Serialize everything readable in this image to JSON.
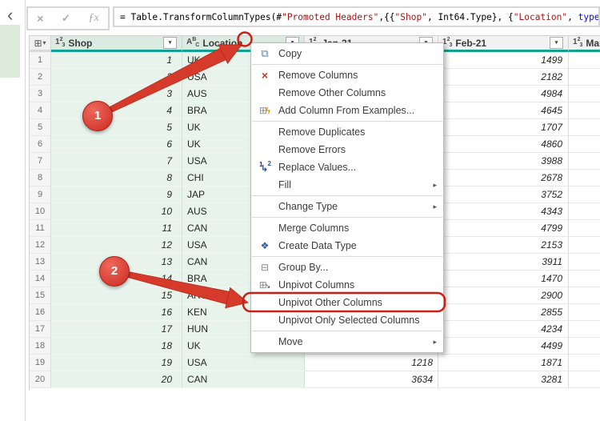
{
  "colors": {
    "accent_teal": "#10a193",
    "selection_green": "#e8f3ec",
    "annotation_red": "#cf1d12",
    "string_red": "#a31515",
    "keyword_blue": "#0000ff"
  },
  "nav": {
    "collapse_chevron": "‹"
  },
  "formula_bar": {
    "cancel_glyph": "×",
    "check_glyph": "✓",
    "fx_glyph": "ƒx",
    "segments": [
      {
        "text": "= Table.TransformColumnTypes(#",
        "color": "#000000"
      },
      {
        "text": "\"Promoted Headers\"",
        "color": "#a31515"
      },
      {
        "text": ",{{",
        "color": "#000000"
      },
      {
        "text": "\"Shop\"",
        "color": "#a31515"
      },
      {
        "text": ", Int64.Type}, {",
        "color": "#000000"
      },
      {
        "text": "\"Location\"",
        "color": "#a31515"
      },
      {
        "text": ", ",
        "color": "#000000"
      },
      {
        "text": "type",
        "color": "#0000ff"
      }
    ]
  },
  "table": {
    "columns": [
      {
        "key": "shop",
        "label": "Shop",
        "type_icon": "number",
        "selected": true
      },
      {
        "key": "location",
        "label": "Location",
        "type_icon": "text",
        "selected": true
      },
      {
        "key": "jan",
        "label": "Jan-21",
        "type_icon": "number",
        "selected": false
      },
      {
        "key": "feb",
        "label": "Feb-21",
        "type_icon": "number",
        "selected": false
      },
      {
        "key": "mar",
        "label": "Mar",
        "type_icon": "number",
        "selected": false
      }
    ],
    "rows": [
      {
        "num": "1",
        "shop": "1",
        "location": "UK",
        "jan": "",
        "feb": "1499",
        "mar": ""
      },
      {
        "num": "2",
        "shop": "2",
        "location": "USA",
        "jan": "",
        "feb": "2182",
        "mar": ""
      },
      {
        "num": "3",
        "shop": "3",
        "location": "AUS",
        "jan": "",
        "feb": "4984",
        "mar": ""
      },
      {
        "num": "4",
        "shop": "4",
        "location": "BRA",
        "jan": "",
        "feb": "4645",
        "mar": ""
      },
      {
        "num": "5",
        "shop": "5",
        "location": "UK",
        "jan": "",
        "feb": "1707",
        "mar": ""
      },
      {
        "num": "6",
        "shop": "6",
        "location": "UK",
        "jan": "",
        "feb": "4860",
        "mar": ""
      },
      {
        "num": "7",
        "shop": "7",
        "location": "USA",
        "jan": "",
        "feb": "3988",
        "mar": ""
      },
      {
        "num": "8",
        "shop": "8",
        "location": "CHI",
        "jan": "",
        "feb": "2678",
        "mar": ""
      },
      {
        "num": "9",
        "shop": "9",
        "location": "JAP",
        "jan": "",
        "feb": "3752",
        "mar": ""
      },
      {
        "num": "10",
        "shop": "10",
        "location": "AUS",
        "jan": "",
        "feb": "4343",
        "mar": ""
      },
      {
        "num": "11",
        "shop": "11",
        "location": "CAN",
        "jan": "",
        "feb": "4799",
        "mar": ""
      },
      {
        "num": "12",
        "shop": "12",
        "location": "USA",
        "jan": "",
        "feb": "2153",
        "mar": ""
      },
      {
        "num": "13",
        "shop": "13",
        "location": "CAN",
        "jan": "",
        "feb": "3911",
        "mar": ""
      },
      {
        "num": "14",
        "shop": "14",
        "location": "BRA",
        "jan": "",
        "feb": "1470",
        "mar": ""
      },
      {
        "num": "15",
        "shop": "15",
        "location": "ARG",
        "jan": "",
        "feb": "2900",
        "mar": ""
      },
      {
        "num": "16",
        "shop": "16",
        "location": "KEN",
        "jan": "",
        "feb": "2855",
        "mar": ""
      },
      {
        "num": "17",
        "shop": "17",
        "location": "HUN",
        "jan": "",
        "feb": "4234",
        "mar": ""
      },
      {
        "num": "18",
        "shop": "18",
        "location": "UK",
        "jan": "",
        "feb": "4499",
        "mar": ""
      },
      {
        "num": "19",
        "shop": "19",
        "location": "USA",
        "jan": "1218",
        "feb": "1871",
        "mar": ""
      },
      {
        "num": "20",
        "shop": "20",
        "location": "CAN",
        "jan": "3634",
        "feb": "3281",
        "mar": ""
      }
    ]
  },
  "context_menu": {
    "items": [
      {
        "label": "Copy",
        "icon": "copy"
      },
      {
        "divider": true
      },
      {
        "label": "Remove Columns",
        "icon": "remove-columns"
      },
      {
        "label": "Remove Other Columns"
      },
      {
        "label": "Add Column From Examples...",
        "icon": "add-column-from-examples"
      },
      {
        "divider": true
      },
      {
        "label": "Remove Duplicates"
      },
      {
        "label": "Remove Errors"
      },
      {
        "label": "Replace Values...",
        "icon": "replace-values"
      },
      {
        "label": "Fill",
        "submenu": true
      },
      {
        "divider": true
      },
      {
        "label": "Change Type",
        "submenu": true
      },
      {
        "divider": true
      },
      {
        "label": "Merge Columns"
      },
      {
        "label": "Create Data Type",
        "icon": "create-data-type"
      },
      {
        "divider": true
      },
      {
        "label": "Group By...",
        "icon": "group-by"
      },
      {
        "label": "Unpivot Columns",
        "icon": "unpivot-columns"
      },
      {
        "label": "Unpivot Other Columns",
        "highlighted": true
      },
      {
        "label": "Unpivot Only Selected Columns"
      },
      {
        "divider": true
      },
      {
        "label": "Move",
        "submenu": true
      }
    ]
  },
  "annotations": {
    "callout_1": "1",
    "callout_2": "2"
  }
}
